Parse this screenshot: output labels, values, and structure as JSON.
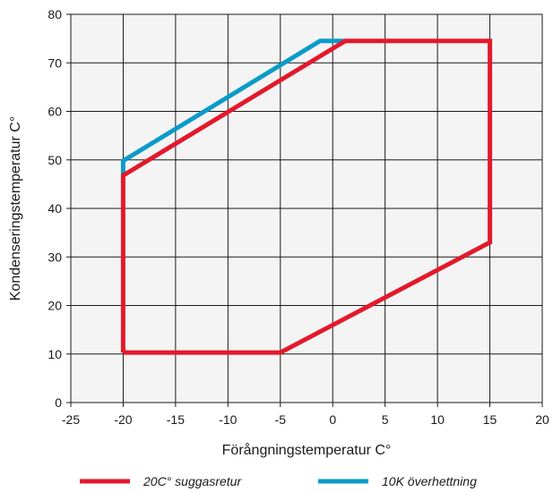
{
  "chart_data": {
    "type": "line",
    "title": "",
    "xlabel": "Förångningstemperatur C°",
    "ylabel": "Kondenseringstemperatur C°",
    "xlim": [
      -25,
      20
    ],
    "ylim": [
      0,
      80
    ],
    "x_ticks": [
      -25,
      -20,
      -15,
      -10,
      -5,
      0,
      5,
      10,
      15,
      20
    ],
    "y_ticks": [
      0,
      10,
      20,
      30,
      40,
      50,
      60,
      70,
      80
    ],
    "x_tick_labels": [
      "-25",
      "-20",
      "-15",
      "-10",
      "-5",
      "0",
      "5",
      "10",
      "15",
      "20"
    ],
    "y_tick_labels": [
      "0",
      "10",
      "20",
      "30",
      "40",
      "50",
      "60",
      "70",
      "80"
    ],
    "grid": true,
    "legend_position": "bottom",
    "background_color": "#f4f4f4",
    "series": [
      {
        "name": "20C° suggasretur",
        "color": "#e3192b",
        "points": [
          [
            -20,
            10.3
          ],
          [
            -20,
            46.8
          ],
          [
            1.2,
            74.5
          ],
          [
            15,
            74.5
          ],
          [
            15,
            33
          ],
          [
            -5,
            10.3
          ],
          [
            -20,
            10.3
          ]
        ]
      },
      {
        "name": "10K överhettning",
        "color": "#0b9bc8",
        "points": [
          [
            -20,
            46.8
          ],
          [
            -20,
            49.8
          ],
          [
            -1.2,
            74.5
          ],
          [
            1.2,
            74.5
          ]
        ]
      }
    ]
  }
}
